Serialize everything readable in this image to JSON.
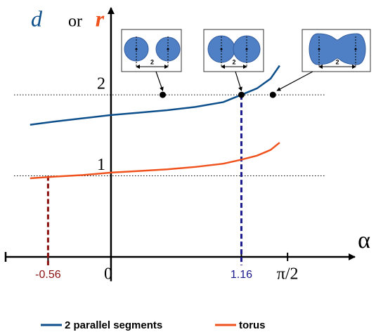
{
  "chart_data": {
    "type": "line",
    "y_label": [
      "d",
      "or",
      "r"
    ],
    "x_label": "α",
    "x": [
      -0.72,
      -0.5,
      -0.25,
      0,
      0.25,
      0.5,
      0.75,
      1.0,
      1.16,
      1.3,
      1.42,
      1.5
    ],
    "series": [
      {
        "name": "2 parallel segments",
        "color": "#0d4f8b",
        "values": [
          1.63,
          1.67,
          1.71,
          1.75,
          1.78,
          1.81,
          1.85,
          1.91,
          2.0,
          2.08,
          2.2,
          2.36
        ]
      },
      {
        "name": "torus",
        "color": "#f0521e",
        "values": [
          0.97,
          0.99,
          1.01,
          1.04,
          1.06,
          1.08,
          1.11,
          1.15,
          1.2,
          1.25,
          1.32,
          1.41
        ]
      }
    ],
    "points": {
      "x": [
        0.46,
        1.16,
        1.44
      ],
      "y": [
        2,
        2,
        2
      ]
    },
    "inset_labels": [
      "2",
      "2",
      "2"
    ],
    "xlim": [
      -0.9,
      2.12
    ],
    "ylim": [
      -0.3,
      3.04
    ],
    "xticks": [
      {
        "value": -0.56,
        "label": "-0.56"
      },
      0,
      {
        "value": 1.16,
        "label": "1.16"
      },
      {
        "value": 1.5708,
        "label": "π/2"
      }
    ],
    "yticks": [
      1,
      2
    ],
    "grid": true
  }
}
